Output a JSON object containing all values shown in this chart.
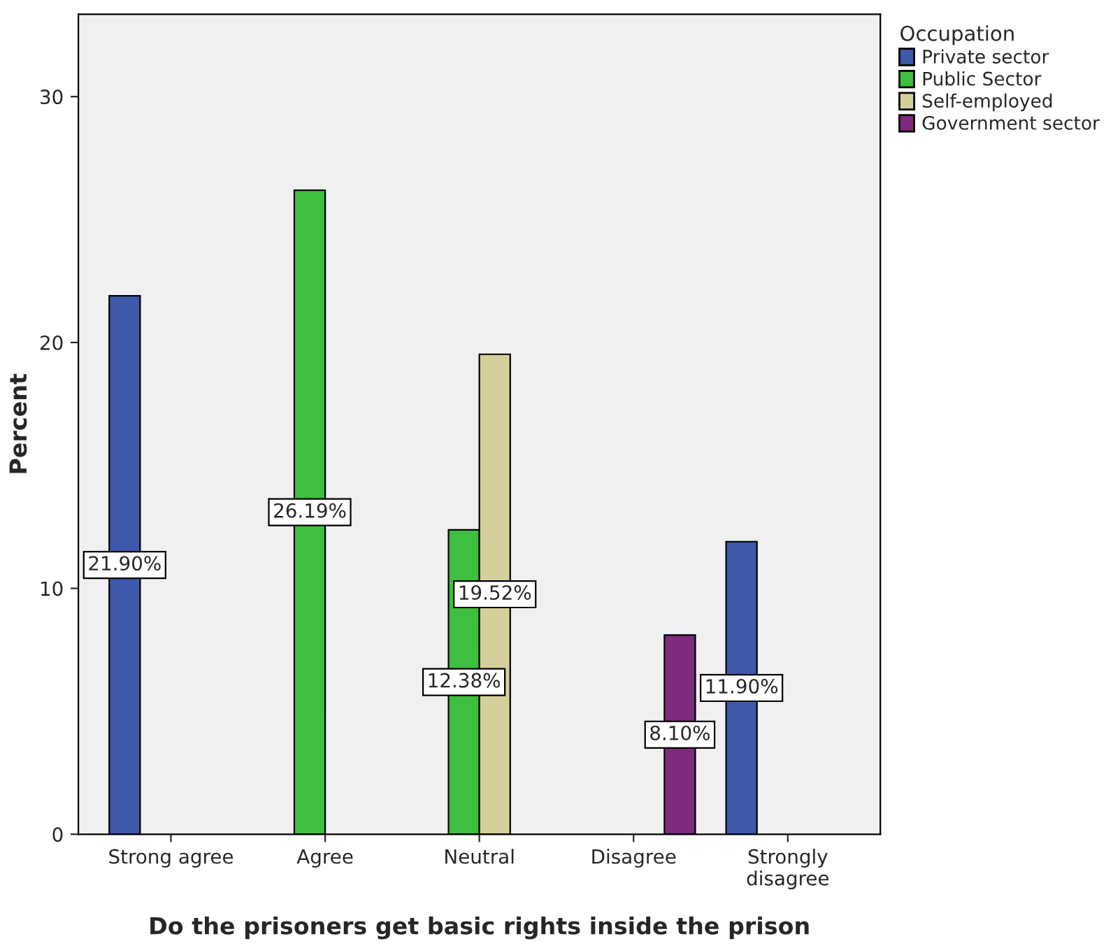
{
  "chart_data": {
    "type": "bar",
    "xlabel": "Do the prisoners get basic rights inside the prison",
    "ylabel": "Percent",
    "legend_title": "Occupation",
    "legend": "right",
    "categories": [
      "Strong agree",
      "Agree",
      "Neutral",
      "Disagree",
      "Strongly disagree"
    ],
    "series": [
      {
        "name": "Private sector",
        "color": "#3e58ac",
        "values": [
          21.9,
          null,
          null,
          null,
          11.9
        ],
        "value_labels": [
          "21.90%",
          null,
          null,
          null,
          "11.90%"
        ]
      },
      {
        "name": "Public Sector",
        "color": "#3fbf3f",
        "values": [
          null,
          26.19,
          12.38,
          null,
          null
        ],
        "value_labels": [
          null,
          "26.19%",
          "12.38%",
          null,
          null
        ]
      },
      {
        "name": "Self-employed",
        "color": "#d5cf9b",
        "values": [
          null,
          null,
          19.52,
          null,
          null
        ],
        "value_labels": [
          null,
          null,
          "19.52%",
          null,
          null
        ]
      },
      {
        "name": "Government sector",
        "color": "#7e2a7e",
        "values": [
          null,
          null,
          null,
          8.1,
          null
        ],
        "value_labels": [
          null,
          null,
          null,
          "8.10%",
          null
        ]
      }
    ],
    "ylim": [
      0,
      33.35
    ],
    "yticks": [
      0,
      10,
      20,
      30
    ],
    "grid": false
  }
}
